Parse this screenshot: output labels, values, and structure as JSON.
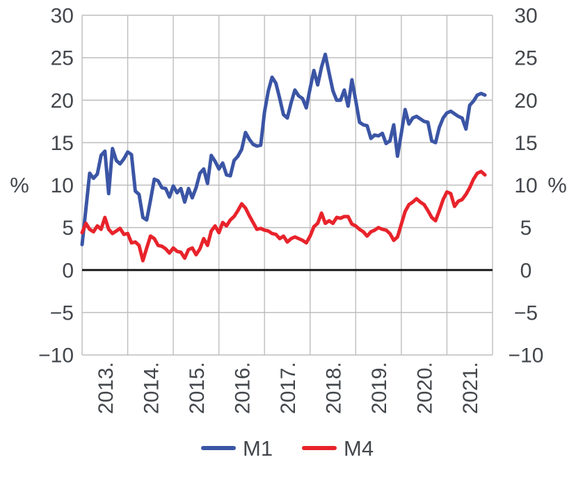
{
  "chart_data": {
    "type": "line",
    "title": "",
    "ylabel_left": "%",
    "ylabel_right": "%",
    "ylim": [
      -10,
      30
    ],
    "ytick_interval": 5,
    "yticks": [
      {
        "value": 30,
        "label": "30"
      },
      {
        "value": 25,
        "label": "25"
      },
      {
        "value": 20,
        "label": "20"
      },
      {
        "value": 15,
        "label": "15"
      },
      {
        "value": 10,
        "label": "10"
      },
      {
        "value": 5,
        "label": "5"
      },
      {
        "value": 0,
        "label": "0"
      },
      {
        "value": -5,
        "label": "−5"
      },
      {
        "value": -10,
        "label": "−10"
      }
    ],
    "xticks": [
      "2013.",
      "2014.",
      "2015.",
      "2016.",
      "2017.",
      "2018.",
      "2019.",
      "2020.",
      "2021."
    ],
    "points_per_year": 12,
    "x_total_months": 108,
    "grid": true,
    "zero_line": true,
    "legend_position": "bottom",
    "series": [
      {
        "name": "M1",
        "color": "#3b55a5",
        "values": [
          3.0,
          7.2,
          11.4,
          10.8,
          11.3,
          13.5,
          14.0,
          9.0,
          14.3,
          12.9,
          12.5,
          13.1,
          13.9,
          13.6,
          9.3,
          8.9,
          6.2,
          5.9,
          8.2,
          10.7,
          10.5,
          9.7,
          9.6,
          8.6,
          9.9,
          9.1,
          9.6,
          8.0,
          9.6,
          8.5,
          9.7,
          11.4,
          11.9,
          10.2,
          13.5,
          12.8,
          11.9,
          12.6,
          11.2,
          11.1,
          12.9,
          13.4,
          14.2,
          16.2,
          15.4,
          14.8,
          14.6,
          14.7,
          18.6,
          21.1,
          22.7,
          22.0,
          20.2,
          18.3,
          17.9,
          19.7,
          21.2,
          20.5,
          20.2,
          19.1,
          21.4,
          23.5,
          21.8,
          23.9,
          25.4,
          23.2,
          21.1,
          20.0,
          20.0,
          21.2,
          19.3,
          22.4,
          20.0,
          17.4,
          17.1,
          17.0,
          15.5,
          15.9,
          15.8,
          16.1,
          14.9,
          15.2,
          17.1,
          13.4,
          16.1,
          18.9,
          17.2,
          17.9,
          18.1,
          17.8,
          17.5,
          17.4,
          15.2,
          15.0,
          16.8,
          17.9,
          18.5,
          18.7,
          18.4,
          18.1,
          17.9,
          16.6,
          19.4,
          19.9,
          20.6,
          20.8,
          20.6
        ]
      },
      {
        "name": "M4",
        "color": "#e8232b",
        "values": [
          4.4,
          5.5,
          4.8,
          4.5,
          5.2,
          4.8,
          6.2,
          4.8,
          4.3,
          4.6,
          4.9,
          4.2,
          4.3,
          3.2,
          3.3,
          2.9,
          1.1,
          2.6,
          4.0,
          3.7,
          2.9,
          2.8,
          2.5,
          2.0,
          2.6,
          2.2,
          2.1,
          1.4,
          2.4,
          2.6,
          1.8,
          2.5,
          3.7,
          2.9,
          4.6,
          5.2,
          4.4,
          5.6,
          5.2,
          5.9,
          6.3,
          7.0,
          7.8,
          7.3,
          6.4,
          5.6,
          4.8,
          4.9,
          4.7,
          4.6,
          4.3,
          4.2,
          3.7,
          4.0,
          3.3,
          3.7,
          3.9,
          3.7,
          3.5,
          3.2,
          4.0,
          5.1,
          5.5,
          6.7,
          5.5,
          5.8,
          5.5,
          6.2,
          6.1,
          6.3,
          6.3,
          5.4,
          5.2,
          4.8,
          4.5,
          4.0,
          4.5,
          4.7,
          5.0,
          4.8,
          4.7,
          4.3,
          3.5,
          3.9,
          5.4,
          6.9,
          7.7,
          8.0,
          8.4,
          8.0,
          7.7,
          7.0,
          6.2,
          5.8,
          7.0,
          8.3,
          9.2,
          9.0,
          7.5,
          8.1,
          8.3,
          8.9,
          9.7,
          10.7,
          11.4,
          11.6,
          11.2
        ]
      }
    ],
    "legend": [
      {
        "label": "M1",
        "color": "#3b55a5"
      },
      {
        "label": "M4",
        "color": "#e8232b"
      }
    ],
    "colors": {
      "grid": "#bdbdbd",
      "zero_line": "#1a1a1a",
      "text": "#43474c"
    }
  }
}
